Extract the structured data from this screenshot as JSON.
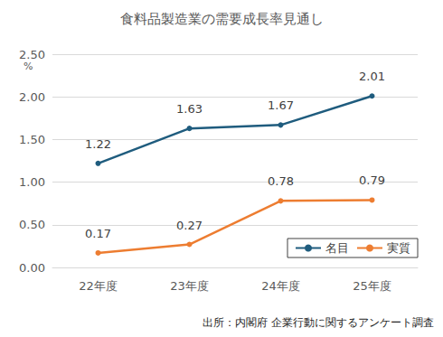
{
  "chart_data": {
    "type": "line",
    "title": "食料品製造業の需要成長率見通し",
    "y_label": "%",
    "source": "出所：内閣府 企業行動に関するアンケート調査",
    "categories": [
      "22年度",
      "23年度",
      "24年度",
      "25年度"
    ],
    "series": [
      {
        "name": "名目",
        "color": "#1f5c7e",
        "marker": "circle",
        "values": [
          1.22,
          1.63,
          1.67,
          2.01
        ]
      },
      {
        "name": "実質",
        "color": "#ed7d31",
        "marker": "circle",
        "values": [
          0.17,
          0.27,
          0.78,
          0.79
        ]
      }
    ],
    "ylim": [
      0,
      2.5
    ],
    "yticks": [
      {
        "value": 0,
        "label": "0.00"
      },
      {
        "value": 0.5,
        "label": "0.50"
      },
      {
        "value": 1,
        "label": "1.00"
      },
      {
        "value": 1.5,
        "label": "1.50"
      },
      {
        "value": 2,
        "label": "2.00"
      },
      {
        "value": 2.5,
        "label": "2.50"
      }
    ],
    "grid": true,
    "legend": "lower right",
    "data_labels": true
  }
}
